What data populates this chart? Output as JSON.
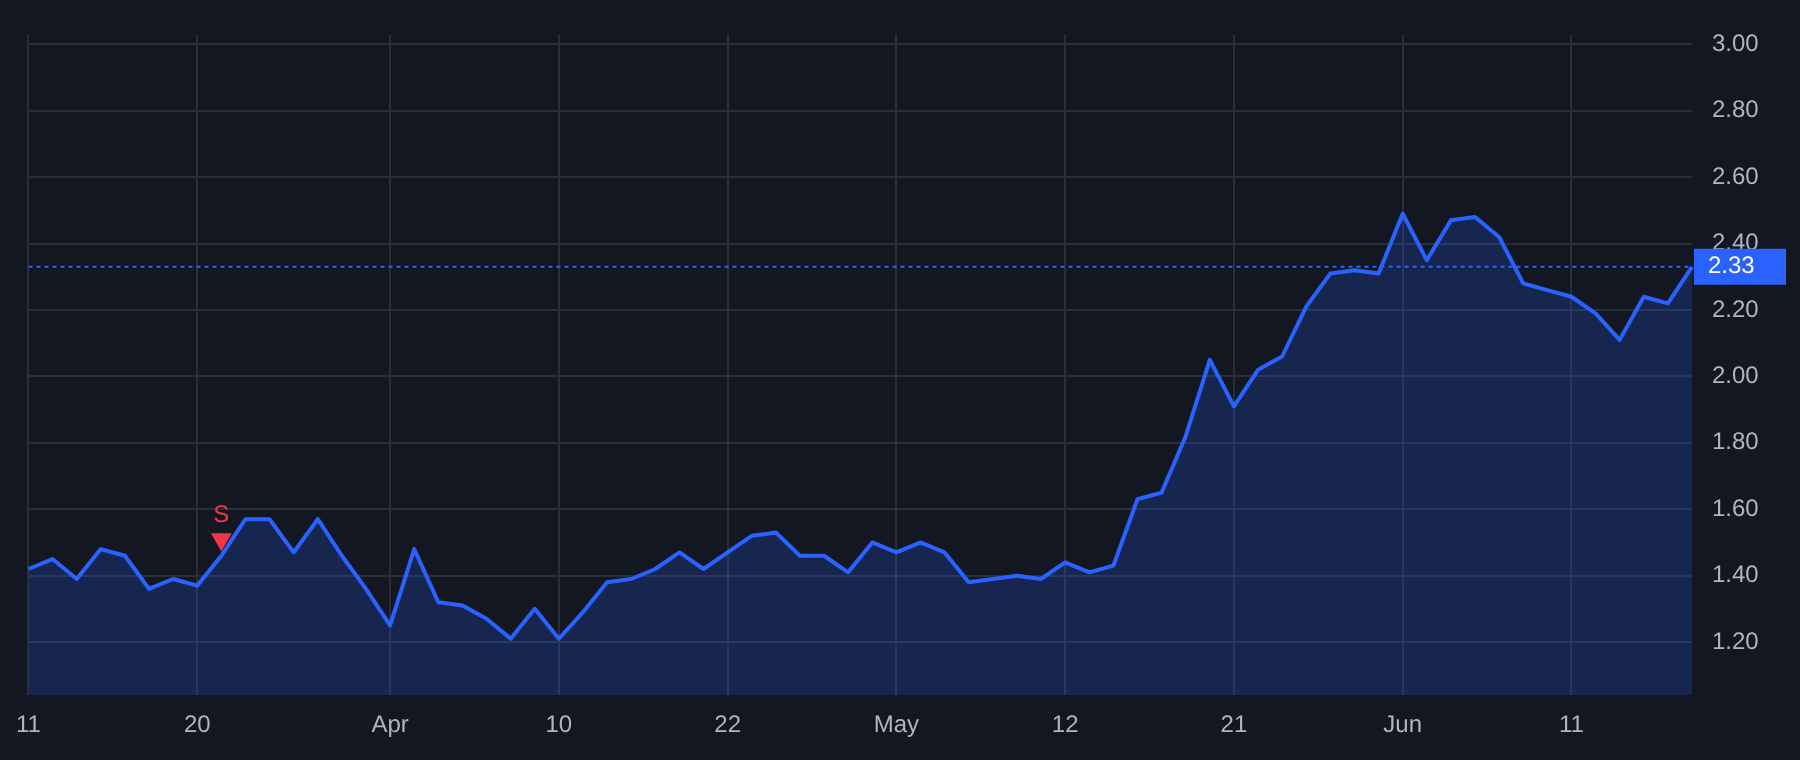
{
  "chart_data": {
    "type": "area",
    "categories": [
      "11",
      null,
      null,
      null,
      null,
      null,
      null,
      "20",
      null,
      null,
      null,
      null,
      null,
      null,
      null,
      "Apr",
      null,
      null,
      null,
      null,
      null,
      null,
      "10",
      null,
      null,
      null,
      null,
      null,
      null,
      "22",
      null,
      null,
      null,
      null,
      null,
      null,
      "May",
      null,
      null,
      null,
      null,
      null,
      null,
      "12",
      null,
      null,
      null,
      null,
      null,
      null,
      "21",
      null,
      null,
      null,
      null,
      null,
      null,
      "Jun",
      null,
      null,
      null,
      null,
      null,
      null,
      "11",
      null,
      null,
      null,
      null,
      null
    ],
    "series": [
      {
        "color": "#2962ff",
        "values": [
          1.42,
          1.45,
          1.39,
          1.48,
          1.46,
          1.36,
          1.39,
          1.37,
          1.46,
          1.57,
          1.57,
          1.47,
          1.57,
          1.46,
          1.36,
          1.25,
          1.48,
          1.32,
          1.31,
          1.27,
          1.21,
          1.3,
          1.21,
          1.29,
          1.38,
          1.39,
          1.42,
          1.47,
          1.42,
          1.47,
          1.52,
          1.53,
          1.46,
          1.46,
          1.41,
          1.5,
          1.47,
          1.5,
          1.47,
          1.38,
          1.39,
          1.4,
          1.39,
          1.44,
          1.41,
          1.43,
          1.63,
          1.65,
          1.82,
          2.05,
          1.91,
          2.02,
          2.06,
          2.21,
          2.31,
          2.32,
          2.31,
          2.49,
          2.35,
          2.47,
          2.48,
          2.42,
          2.28,
          2.26,
          2.24,
          2.19,
          2.11,
          2.24,
          2.22,
          2.33
        ]
      },
      {
        "type": "scatter",
        "name": "S",
        "color": "#f23645",
        "marker": "triangle",
        "values": [
          null,
          null,
          null,
          null,
          null,
          null,
          null,
          null,
          1.51,
          null,
          null,
          null,
          null,
          null,
          null,
          null,
          null,
          null,
          null,
          null,
          null,
          null,
          null,
          null,
          null,
          null,
          null,
          null,
          null,
          null,
          null,
          null,
          null,
          null,
          null,
          null,
          null,
          null,
          null,
          null,
          null,
          null,
          null,
          null,
          null,
          null,
          null,
          null,
          null,
          null,
          null,
          null,
          null,
          null,
          null,
          null,
          null,
          null,
          null,
          null,
          null,
          null,
          null,
          null,
          null,
          null,
          null,
          null,
          null,
          null
        ]
      }
    ],
    "ylim": [
      1.04,
      3.03
    ],
    "yticks": [
      {
        "value": 1.2,
        "label": "1.20"
      },
      {
        "value": 1.4,
        "label": "1.40"
      },
      {
        "value": 1.6,
        "label": "1.60"
      },
      {
        "value": 1.8,
        "label": "1.80"
      },
      {
        "value": 2.0,
        "label": "2.00"
      },
      {
        "value": 2.2,
        "label": "2.20"
      },
      {
        "value": 2.4,
        "label": "2.40"
      },
      {
        "value": 2.6,
        "label": "2.60"
      },
      {
        "value": 2.8,
        "label": "2.80"
      },
      {
        "value": 3.0,
        "label": "3.00"
      }
    ],
    "ref_lines": [
      {
        "axis": "y",
        "value": 2.33,
        "label": "2.33",
        "color": "#2962ff",
        "line_style": "dotted"
      }
    ],
    "grid": true,
    "legend": false,
    "marker": "none",
    "line_style": "solid"
  }
}
